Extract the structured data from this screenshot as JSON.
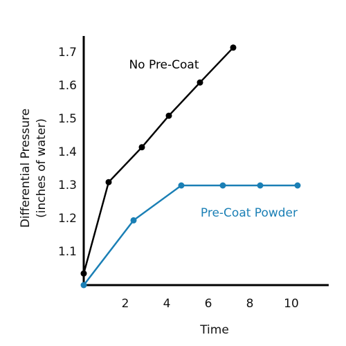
{
  "chart_data": {
    "type": "line",
    "x_label": "Time",
    "y_label": [
      "Differential Pressure",
      "(inches of water)"
    ],
    "xlim": [
      0,
      11.8
    ],
    "xticks": [
      2,
      4,
      6,
      8,
      10
    ],
    "ylim": [
      1.0,
      1.75
    ],
    "yticks": [
      1.1,
      1.2,
      1.3,
      1.4,
      1.5,
      1.6,
      1.7
    ],
    "series": [
      {
        "name": "No Pre-Coat",
        "color": "#000000",
        "x": [
          0,
          1.2,
          2.8,
          4.1,
          5.6,
          7.2
        ],
        "values": [
          1.035,
          1.31,
          1.415,
          1.51,
          1.61,
          1.715
        ]
      },
      {
        "name": "Pre-Coat Powder",
        "color": "#1a7fb5",
        "x": [
          0,
          2.4,
          4.7,
          6.7,
          8.5,
          10.3
        ],
        "values": [
          1.0,
          1.195,
          1.3,
          1.3,
          1.3,
          1.3
        ]
      }
    ]
  }
}
